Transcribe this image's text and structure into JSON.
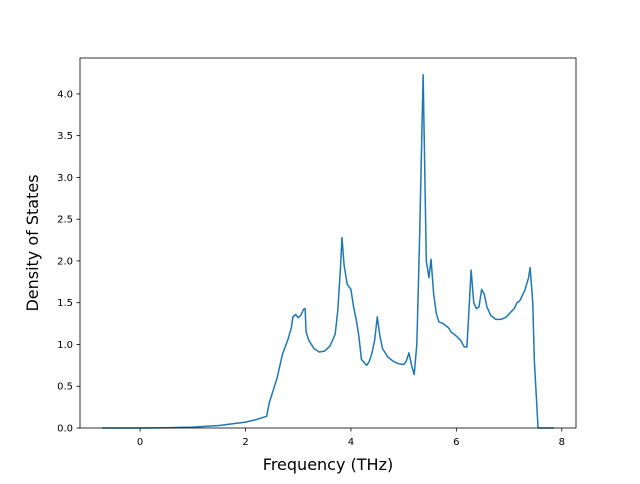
{
  "chart_data": {
    "type": "line",
    "x_label": "Frequency (THz)",
    "y_label": "Density of States",
    "x": [
      -0.72,
      0,
      0.5,
      1,
      1.5,
      2,
      2.2,
      2.4,
      2.45,
      2.6,
      2.7,
      2.8,
      2.87,
      2.9,
      2.95,
      3.0,
      3.05,
      3.1,
      3.13,
      3.15,
      3.2,
      3.3,
      3.4,
      3.5,
      3.6,
      3.7,
      3.75,
      3.8,
      3.83,
      3.87,
      3.93,
      4.0,
      4.05,
      4.1,
      4.15,
      4.2,
      4.3,
      4.35,
      4.4,
      4.45,
      4.5,
      4.55,
      4.6,
      4.7,
      4.8,
      4.9,
      5.0,
      5.05,
      5.1,
      5.15,
      5.2,
      5.25,
      5.3,
      5.37,
      5.43,
      5.48,
      5.52,
      5.57,
      5.62,
      5.67,
      5.75,
      5.85,
      5.9,
      6.0,
      6.08,
      6.15,
      6.2,
      6.23,
      6.28,
      6.33,
      6.38,
      6.43,
      6.48,
      6.53,
      6.58,
      6.65,
      6.75,
      6.85,
      6.95,
      7.05,
      7.1,
      7.15,
      7.2,
      7.3,
      7.37,
      7.4,
      7.45,
      7.48,
      7.55,
      7.85
    ],
    "values": [
      0,
      0,
      0.003,
      0.01,
      0.03,
      0.07,
      0.1,
      0.14,
      0.3,
      0.6,
      0.88,
      1.05,
      1.2,
      1.33,
      1.36,
      1.32,
      1.35,
      1.42,
      1.43,
      1.15,
      1.05,
      0.95,
      0.91,
      0.92,
      0.98,
      1.12,
      1.4,
      1.9,
      2.28,
      1.95,
      1.72,
      1.66,
      1.45,
      1.3,
      1.1,
      0.82,
      0.75,
      0.8,
      0.9,
      1.05,
      1.33,
      1.1,
      0.95,
      0.85,
      0.8,
      0.77,
      0.76,
      0.8,
      0.9,
      0.75,
      0.64,
      1.0,
      2.2,
      4.23,
      2.0,
      1.8,
      2.02,
      1.6,
      1.37,
      1.27,
      1.25,
      1.2,
      1.15,
      1.1,
      1.05,
      0.97,
      0.97,
      1.3,
      1.89,
      1.5,
      1.43,
      1.45,
      1.66,
      1.6,
      1.45,
      1.35,
      1.3,
      1.3,
      1.33,
      1.4,
      1.43,
      1.5,
      1.52,
      1.65,
      1.8,
      1.92,
      1.5,
      0.8,
      0,
      0
    ],
    "color": "#1f77b4",
    "xlim": [
      -1.14,
      8.27
    ],
    "ylim": [
      0,
      4.43
    ],
    "xticks": [
      0,
      2,
      4,
      6,
      8
    ],
    "yticks": [
      {
        "value": 0,
        "label": "0.0"
      },
      0.5,
      {
        "value": 1,
        "label": "1.0"
      },
      1.5,
      {
        "value": 2,
        "label": "2.0"
      },
      2.5,
      {
        "value": 3,
        "label": "3.0"
      },
      3.5,
      {
        "value": 4,
        "label": "4.0"
      }
    ]
  }
}
